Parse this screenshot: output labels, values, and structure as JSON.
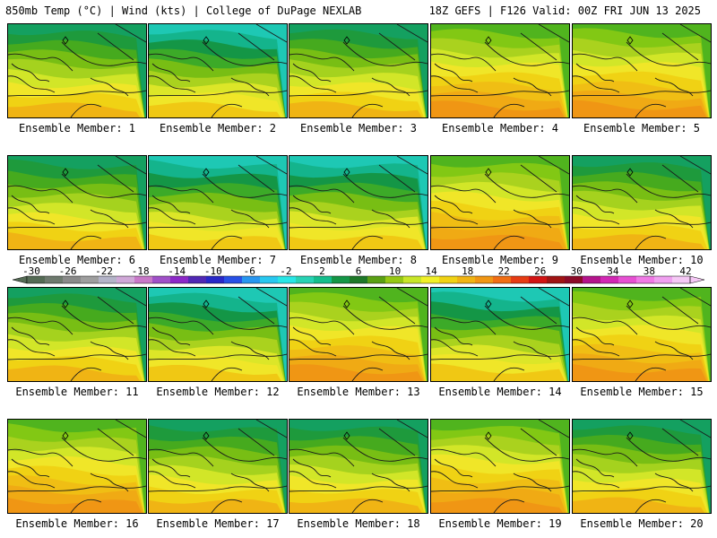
{
  "header": {
    "left": "850mb Temp (°C) | Wind (kts) | College of DuPage NEXLAB",
    "right": "18Z GEFS | F126 Valid: 00Z FRI JUN 13 2025"
  },
  "colorbar": {
    "labels": [
      "-30",
      "-26",
      "-22",
      "-18",
      "-14",
      "-10",
      "-6",
      "-2",
      "2",
      "6",
      "10",
      "14",
      "18",
      "22",
      "26",
      "30",
      "34",
      "38",
      "42"
    ],
    "colors": [
      "#556b55",
      "#6e7a6e",
      "#8a8a8a",
      "#9e9e9e",
      "#b4b4c8",
      "#d0a8d8",
      "#c878c8",
      "#a050c8",
      "#8c28c8",
      "#5028b4",
      "#2828c8",
      "#2850e6",
      "#2896f0",
      "#28c8f0",
      "#28e6e6",
      "#28d2b4",
      "#14be8c",
      "#149646",
      "#1e7828",
      "#5aa014",
      "#96c814",
      "#c8e628",
      "#f0f028",
      "#f0d214",
      "#f0b414",
      "#f09614",
      "#f06e14",
      "#e63c14",
      "#d21414",
      "#a01414",
      "#8c0a28",
      "#b4148c",
      "#d228b4",
      "#e650d2",
      "#f07ae6",
      "#f0a0f0",
      "#f5c8f5"
    ]
  },
  "panels": [
    {
      "label": "Ensemble Member: 1",
      "scheme": "mid"
    },
    {
      "label": "Ensemble Member: 2",
      "scheme": "cool"
    },
    {
      "label": "Ensemble Member: 3",
      "scheme": "mid"
    },
    {
      "label": "Ensemble Member: 4",
      "scheme": "warm"
    },
    {
      "label": "Ensemble Member: 5",
      "scheme": "warm"
    },
    {
      "label": "Ensemble Member: 6",
      "scheme": "mid"
    },
    {
      "label": "Ensemble Member: 7",
      "scheme": "cool"
    },
    {
      "label": "Ensemble Member: 8",
      "scheme": "cool"
    },
    {
      "label": "Ensemble Member: 9",
      "scheme": "warm"
    },
    {
      "label": "Ensemble Member: 10",
      "scheme": "mid"
    },
    {
      "label": "Ensemble Member: 11",
      "scheme": "mid"
    },
    {
      "label": "Ensemble Member: 12",
      "scheme": "cool"
    },
    {
      "label": "Ensemble Member: 13",
      "scheme": "warm"
    },
    {
      "label": "Ensemble Member: 14",
      "scheme": "cool"
    },
    {
      "label": "Ensemble Member: 15",
      "scheme": "warm"
    },
    {
      "label": "Ensemble Member: 16",
      "scheme": "warm"
    },
    {
      "label": "Ensemble Member: 17",
      "scheme": "mid"
    },
    {
      "label": "Ensemble Member: 18",
      "scheme": "mid"
    },
    {
      "label": "Ensemble Member: 19",
      "scheme": "warm"
    },
    {
      "label": "Ensemble Member: 20",
      "scheme": "mid"
    }
  ]
}
